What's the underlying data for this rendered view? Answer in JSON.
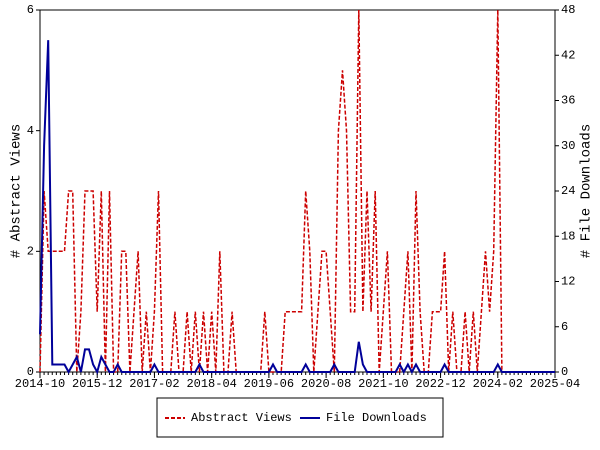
{
  "chart_data": {
    "type": "line",
    "ylabel": "# Abstract Views",
    "y2label": "# File Downloads",
    "x": [
      "2014-10",
      "2014-11",
      "2014-12",
      "2015-01",
      "2015-02",
      "2015-03",
      "2015-04",
      "2015-05",
      "2015-06",
      "2015-07",
      "2015-08",
      "2015-09",
      "2015-10",
      "2015-11",
      "2015-12",
      "2016-01",
      "2016-02",
      "2016-03",
      "2016-04",
      "2016-05",
      "2016-06",
      "2016-07",
      "2016-08",
      "2016-09",
      "2016-10",
      "2016-11",
      "2016-12",
      "2017-01",
      "2017-02",
      "2017-03",
      "2017-04",
      "2017-05",
      "2017-06",
      "2017-07",
      "2017-08",
      "2017-09",
      "2017-10",
      "2017-11",
      "2017-12",
      "2018-01",
      "2018-02",
      "2018-03",
      "2018-04",
      "2018-05",
      "2018-06",
      "2018-07",
      "2018-08",
      "2018-09",
      "2018-10",
      "2018-11",
      "2018-12",
      "2019-01",
      "2019-02",
      "2019-03",
      "2019-04",
      "2019-05",
      "2019-06",
      "2019-07",
      "2019-08",
      "2019-09",
      "2019-10",
      "2019-11",
      "2019-12",
      "2020-01",
      "2020-02",
      "2020-03",
      "2020-04",
      "2020-05",
      "2020-06",
      "2020-07",
      "2020-08",
      "2020-09",
      "2020-10",
      "2020-11",
      "2020-12",
      "2021-01",
      "2021-02",
      "2021-03",
      "2021-04",
      "2021-05",
      "2021-06",
      "2021-07",
      "2021-08",
      "2021-09",
      "2021-10",
      "2021-11",
      "2021-12",
      "2022-01",
      "2022-02",
      "2022-03",
      "2022-04",
      "2022-05",
      "2022-06",
      "2022-07",
      "2022-08",
      "2022-09",
      "2022-10",
      "2022-11",
      "2022-12",
      "2023-01",
      "2023-02",
      "2023-03",
      "2023-04",
      "2023-05",
      "2023-06",
      "2023-07",
      "2023-08",
      "2023-09",
      "2023-10",
      "2023-11",
      "2023-12",
      "2024-01",
      "2024-02",
      "2024-03",
      "2024-04",
      "2024-05",
      "2024-06",
      "2024-07",
      "2024-08",
      "2024-09",
      "2024-10",
      "2024-11",
      "2024-12",
      "2025-01",
      "2025-02",
      "2025-03",
      "2025-04"
    ],
    "xlim": [
      "2014-10",
      "2025-04"
    ],
    "xticks": [
      "2014-10",
      "2015-12",
      "2017-02",
      "2018-04",
      "2019-06",
      "2020-08",
      "2021-10",
      "2022-12",
      "2024-02",
      "2025-04"
    ],
    "ylim": [
      0,
      6
    ],
    "yticks": [
      0,
      2,
      4,
      6
    ],
    "y2lim": [
      0,
      48
    ],
    "y2ticks": [
      0,
      6,
      12,
      18,
      24,
      30,
      36,
      42,
      48
    ],
    "series": [
      {
        "name": "Abstract Views",
        "color": "#cc0000",
        "line_style": "dashed",
        "values": [
          0,
          3,
          2,
          2,
          2,
          2,
          2,
          3,
          3,
          0,
          1,
          3,
          3,
          3,
          1,
          3,
          0,
          3,
          0,
          0,
          2,
          2,
          0,
          1,
          2,
          0,
          1,
          0,
          1,
          3,
          0,
          0,
          0,
          1,
          0,
          0,
          1,
          0,
          1,
          0,
          1,
          0,
          1,
          0,
          2,
          0,
          0,
          1,
          0,
          0,
          0,
          0,
          0,
          0,
          0,
          1,
          0,
          0,
          0,
          0,
          1,
          1,
          1,
          1,
          1,
          3,
          2,
          0,
          1,
          2,
          2,
          1,
          0,
          4,
          5,
          4,
          1,
          1,
          6,
          1,
          3,
          1,
          3,
          0,
          1,
          2,
          0,
          0,
          0,
          1,
          2,
          0,
          3,
          1,
          0,
          0,
          1,
          1,
          1,
          2,
          0,
          1,
          0,
          0,
          1,
          0,
          1,
          0,
          1,
          2,
          1,
          2,
          6,
          0,
          0,
          0,
          0,
          0,
          0,
          0,
          0,
          0,
          0,
          0,
          0,
          0,
          0
        ]
      },
      {
        "name": "File Downloads",
        "color": "#000099",
        "line_style": "solid",
        "axis": "y2",
        "values": [
          5,
          30,
          44,
          1,
          1,
          1,
          1,
          0,
          1,
          2,
          0,
          3,
          3,
          1,
          0,
          2,
          1,
          0,
          0,
          1,
          0,
          0,
          0,
          0,
          0,
          0,
          0,
          0,
          1,
          0,
          0,
          0,
          0,
          0,
          0,
          0,
          0,
          0,
          0,
          1,
          0,
          0,
          0,
          0,
          0,
          0,
          0,
          0,
          0,
          0,
          0,
          0,
          0,
          0,
          0,
          0,
          0,
          1,
          0,
          0,
          0,
          0,
          0,
          0,
          0,
          1,
          0,
          0,
          0,
          0,
          0,
          0,
          1,
          0,
          0,
          0,
          0,
          0,
          4,
          1,
          0,
          0,
          0,
          0,
          0,
          0,
          0,
          0,
          1,
          0,
          1,
          0,
          1,
          0,
          0,
          0,
          0,
          0,
          0,
          1,
          0,
          0,
          0,
          0,
          0,
          0,
          0,
          0,
          0,
          0,
          0,
          0,
          1,
          0,
          0,
          0,
          0,
          0,
          0,
          0,
          0,
          0,
          0,
          0,
          0,
          0,
          0
        ]
      }
    ]
  }
}
